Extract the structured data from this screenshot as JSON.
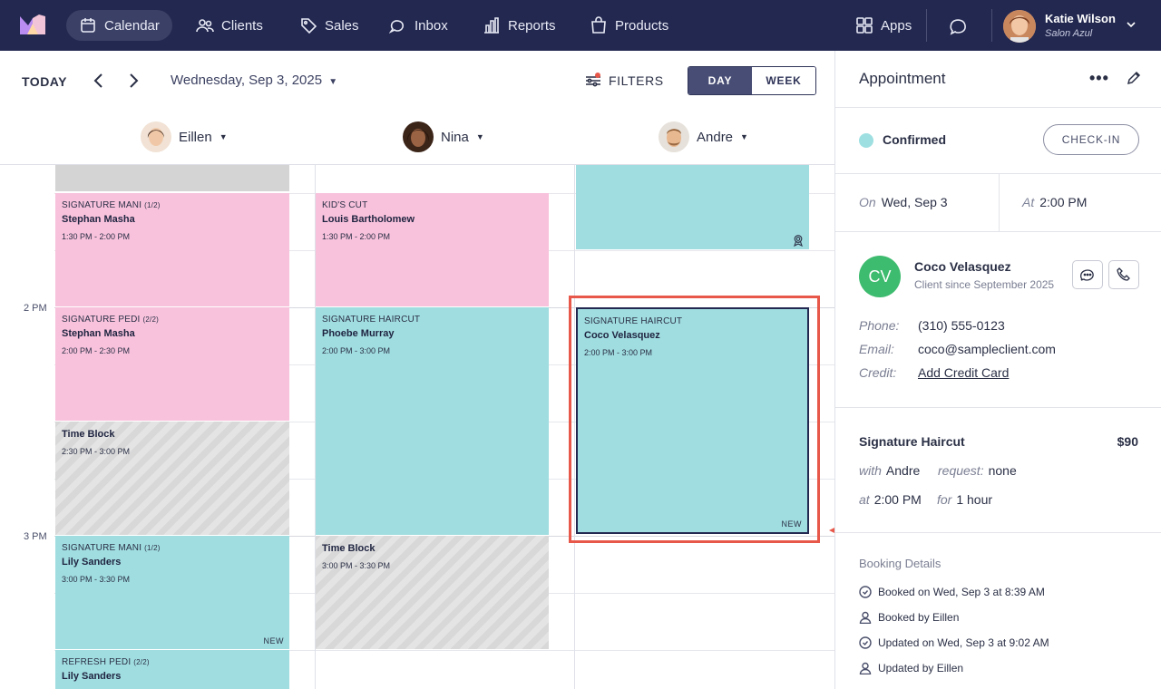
{
  "nav": {
    "items": [
      {
        "label": "Calendar",
        "icon": "calendar-icon",
        "active": true
      },
      {
        "label": "Clients",
        "icon": "users-icon"
      },
      {
        "label": "Sales",
        "icon": "tag-icon"
      },
      {
        "label": "Inbox",
        "icon": "chat-bubble-icon"
      },
      {
        "label": "Reports",
        "icon": "bar-chart-icon"
      },
      {
        "label": "Products",
        "icon": "shopping-bag-icon"
      }
    ],
    "apps_label": "Apps",
    "user": {
      "name": "Katie Wilson",
      "salon": "Salon Azul"
    }
  },
  "toolbar": {
    "today": "TODAY",
    "date": "Wednesday, Sep 3, 2025",
    "filters": "FILTERS",
    "view_day": "DAY",
    "view_week": "WEEK"
  },
  "staff": [
    "Eillen",
    "Nina",
    "Andre"
  ],
  "time_labels": [
    "2 PM",
    "3 PM"
  ],
  "appointments": {
    "eillen": [
      {
        "service": "SIGNATURE MANI",
        "part": "(1/2)",
        "client": "Stephan Masha",
        "time": "1:30 PM - 2:00 PM"
      },
      {
        "service": "SIGNATURE PEDI",
        "part": "(2/2)",
        "client": "Stephan Masha",
        "time": "2:00 PM - 2:30 PM"
      },
      {
        "client": "Time Block",
        "time": "2:30 PM - 3:00 PM"
      },
      {
        "service": "SIGNATURE MANI",
        "part": "(1/2)",
        "client": "Lily Sanders",
        "time": "3:00 PM - 3:30 PM",
        "tag": "NEW"
      },
      {
        "service": "REFRESH PEDI",
        "part": "(2/2)",
        "client": "Lily Sanders"
      }
    ],
    "nina": [
      {
        "service": "KID'S CUT",
        "client": "Louis Bartholomew",
        "time": "1:30 PM - 2:00 PM"
      },
      {
        "service": "SIGNATURE HAIRCUT",
        "client": "Phoebe Murray",
        "time": "2:00 PM - 3:00 PM"
      },
      {
        "client": "Time Block",
        "time": "3:00 PM - 3:30 PM"
      }
    ],
    "andre": [
      {
        "service": "SIGNATURE HAIRCUT",
        "client": "Coco Velasquez",
        "time": "2:00 PM - 3:00 PM",
        "tag": "NEW"
      }
    ]
  },
  "panel": {
    "title": "Appointment",
    "more": "•••",
    "status": "Confirmed",
    "checkin": "CHECK-IN",
    "on_label": "On",
    "on_value": "Wed, Sep 3",
    "at_label": "At",
    "at_value": "2:00 PM",
    "client": {
      "initials": "CV",
      "name": "Coco Velasquez",
      "since": "Client since September 2025",
      "phone_label": "Phone:",
      "phone": "(310) 555-0123",
      "email_label": "Email:",
      "email": "coco@sampleclient.com",
      "credit_label": "Credit:",
      "credit": "Add Credit Card"
    },
    "service": {
      "name": "Signature Haircut",
      "price": "$90",
      "with_label": "with",
      "with": "Andre",
      "request_label": "request:",
      "request": "none",
      "at_label": "at",
      "at": "2:00 PM",
      "for_label": "for",
      "for": "1 hour"
    },
    "booking": {
      "title": "Booking Details",
      "items": [
        {
          "icon": "clock-check-icon",
          "text": "Booked on Wed, Sep 3 at 8:39 AM"
        },
        {
          "icon": "person-icon",
          "text": "Booked by Eillen"
        },
        {
          "icon": "clock-check-icon",
          "text": "Updated on Wed, Sep 3 at 9:02 AM"
        },
        {
          "icon": "person-icon",
          "text": "Updated by Eillen"
        }
      ]
    }
  },
  "colors": {
    "nav_bg": "#232850",
    "pink": "#f8c2dc",
    "teal": "#a0dde0",
    "highlight": "#e8584a",
    "confirmed": "#9edfe1",
    "avatar": "#3dbb6e"
  }
}
